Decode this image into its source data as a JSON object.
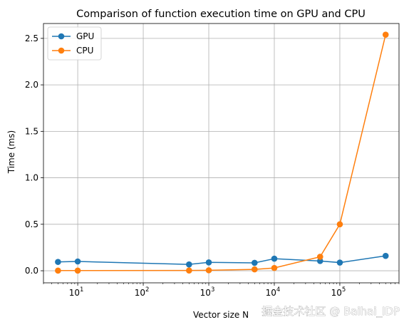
{
  "chart_data": {
    "type": "line",
    "title": "Comparison of function execution time on GPU and CPU",
    "xlabel": "Vector size N",
    "ylabel": "Time (ms)",
    "xscale": "log",
    "xlim": [
      3,
      800000
    ],
    "ylim": [
      -0.13,
      2.66
    ],
    "xticks": [
      {
        "value": 10,
        "base": "10",
        "exp": "1"
      },
      {
        "value": 100,
        "base": "10",
        "exp": "2"
      },
      {
        "value": 1000,
        "base": "10",
        "exp": "3"
      },
      {
        "value": 10000,
        "base": "10",
        "exp": "4"
      },
      {
        "value": 100000,
        "base": "10",
        "exp": "5"
      }
    ],
    "yticks": [
      "0.0",
      "0.5",
      "1.0",
      "1.5",
      "2.0",
      "2.5"
    ],
    "grid": true,
    "legend_position": "top-left",
    "x": [
      5,
      10,
      500,
      1000,
      5000,
      10000,
      50000,
      100000,
      500000
    ],
    "series": [
      {
        "name": "GPU",
        "color": "#1f77b4",
        "values": [
          0.095,
          0.1,
          0.068,
          0.09,
          0.085,
          0.13,
          0.105,
          0.088,
          0.16
        ]
      },
      {
        "name": "CPU",
        "color": "#ff7f0e",
        "values": [
          0.002,
          0.002,
          0.003,
          0.005,
          0.015,
          0.03,
          0.15,
          0.5,
          2.54
        ]
      }
    ]
  },
  "watermark": {
    "text": "掘金技术社区 @ Baihai_IDP"
  }
}
